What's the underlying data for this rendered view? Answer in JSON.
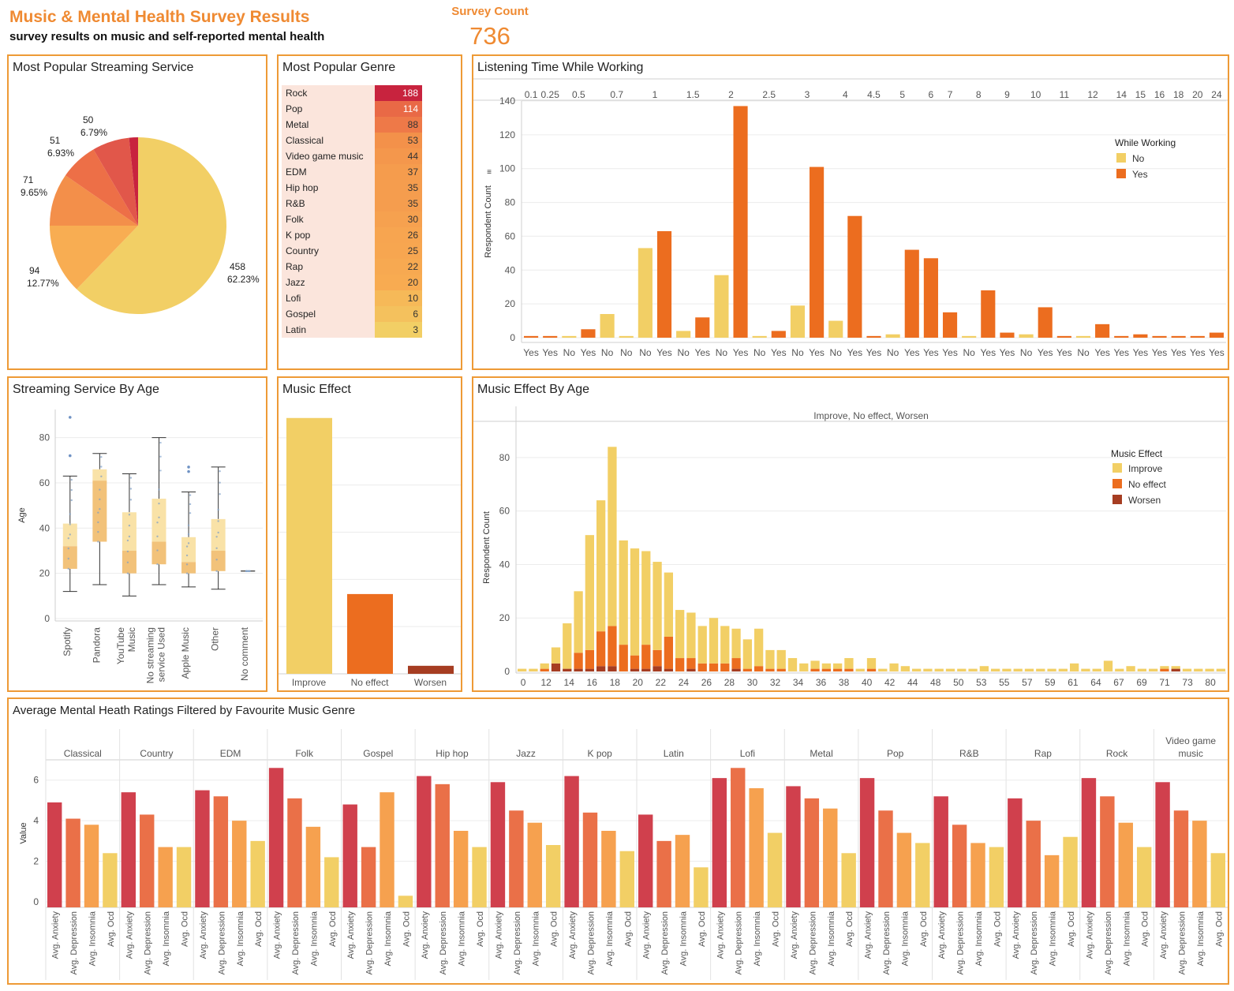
{
  "header": {
    "title": "Music & Mental Health Survey Results",
    "subtitle": "survey results on music and self-reported mental health",
    "survey_count_label": "Survey Count",
    "survey_count_value": "736"
  },
  "colors": {
    "yellow": "#f2cf65",
    "lightorange": "#f8ad52",
    "orange": "#f38f4a",
    "deeporange": "#ed6f47",
    "red": "#e1574a",
    "crimson": "#c8233e",
    "brightorange": "#ec6d1f",
    "brown": "#a63d22",
    "anxiety": "#d0404d",
    "depression": "#ea7048",
    "insomnia": "#f6a14f",
    "ocd": "#f2cf65",
    "panel_border": "#ee9a36",
    "accent": "#ef8a32"
  },
  "panels": {
    "streaming": {
      "title": "Most Popular Streaming Service"
    },
    "genre": {
      "title": "Most Popular Genre"
    },
    "listening": {
      "title": "Listening Time While Working"
    },
    "age_box": {
      "title": "Streaming Service By Age"
    },
    "effect": {
      "title": "Music Effect"
    },
    "effect_age": {
      "title": "Music Effect By Age"
    },
    "mental": {
      "title": "Average Mental Heath Ratings Filtered by Favourite Music Genre"
    }
  },
  "chart_data": [
    {
      "id": "streaming_pie",
      "type": "pie",
      "title": "Most Popular Streaming Service",
      "slices": [
        {
          "value": 458,
          "label": "458",
          "pct": "62.23%",
          "color": "yellow"
        },
        {
          "value": 94,
          "label": "94",
          "pct": "12.77%",
          "color": "lightorange"
        },
        {
          "value": 71,
          "label": "71",
          "pct": "9.65%",
          "color": "orange"
        },
        {
          "value": 51,
          "label": "51",
          "pct": "6.93%",
          "color": "deeporange"
        },
        {
          "value": 50,
          "label": "50",
          "pct": "6.79%",
          "color": "red"
        },
        {
          "value": 12,
          "label": "",
          "pct": "",
          "color": "crimson"
        }
      ]
    },
    {
      "id": "genre_table",
      "type": "table",
      "title": "Most Popular Genre",
      "rows": [
        {
          "genre": "Rock",
          "count": 188
        },
        {
          "genre": "Pop",
          "count": 114
        },
        {
          "genre": "Metal",
          "count": 88
        },
        {
          "genre": "Classical",
          "count": 53
        },
        {
          "genre": "Video game music",
          "count": 44
        },
        {
          "genre": "EDM",
          "count": 37
        },
        {
          "genre": "Hip hop",
          "count": 35
        },
        {
          "genre": "R&B",
          "count": 35
        },
        {
          "genre": "Folk",
          "count": 30
        },
        {
          "genre": "K pop",
          "count": 26
        },
        {
          "genre": "Country",
          "count": 25
        },
        {
          "genre": "Rap",
          "count": 22
        },
        {
          "genre": "Jazz",
          "count": 20
        },
        {
          "genre": "Lofi",
          "count": 10
        },
        {
          "genre": "Gospel",
          "count": 6
        },
        {
          "genre": "Latin",
          "count": 3
        }
      ]
    },
    {
      "id": "listening_time",
      "type": "bar",
      "title": "Listening Time While Working",
      "ylabel": "Respondent Count",
      "ylim": [
        0,
        140
      ],
      "yticks": [
        0,
        20,
        40,
        60,
        80,
        100,
        120,
        140
      ],
      "legend_title": "While Working",
      "legend": [
        {
          "name": "No",
          "color": "yellow"
        },
        {
          "name": "Yes",
          "color": "brightorange"
        }
      ],
      "groups": [
        {
          "hours": "0.1",
          "bars": [
            {
              "cat": "Yes",
              "value": 1
            }
          ]
        },
        {
          "hours": "0.25",
          "bars": [
            {
              "cat": "Yes",
              "value": 1
            }
          ]
        },
        {
          "hours": "0.5",
          "bars": [
            {
              "cat": "No",
              "value": 1
            },
            {
              "cat": "Yes",
              "value": 5
            }
          ]
        },
        {
          "hours": "0.7",
          "bars": [
            {
              "cat": "No",
              "value": 14
            },
            {
              "cat": "No",
              "value": 1
            }
          ]
        },
        {
          "hours": "1",
          "bars": [
            {
              "cat": "No",
              "value": 53
            },
            {
              "cat": "Yes",
              "value": 63
            }
          ]
        },
        {
          "hours": "1.5",
          "bars": [
            {
              "cat": "No",
              "value": 4
            },
            {
              "cat": "Yes",
              "value": 12
            }
          ]
        },
        {
          "hours": "2",
          "bars": [
            {
              "cat": "No",
              "value": 37
            },
            {
              "cat": "Yes",
              "value": 137
            }
          ]
        },
        {
          "hours": "2.5",
          "bars": [
            {
              "cat": "No",
              "value": 1
            },
            {
              "cat": "Yes",
              "value": 4
            }
          ]
        },
        {
          "hours": "3",
          "bars": [
            {
              "cat": "No",
              "value": 19
            },
            {
              "cat": "Yes",
              "value": 101
            }
          ]
        },
        {
          "hours": "4",
          "bars": [
            {
              "cat": "No",
              "value": 10
            },
            {
              "cat": "Yes",
              "value": 72
            }
          ]
        },
        {
          "hours": "4.5",
          "bars": [
            {
              "cat": "Yes",
              "value": 1
            }
          ]
        },
        {
          "hours": "5",
          "bars": [
            {
              "cat": "No",
              "value": 2
            },
            {
              "cat": "Yes",
              "value": 52
            }
          ]
        },
        {
          "hours": "6",
          "bars": [
            {
              "cat": "Yes",
              "value": 47
            }
          ]
        },
        {
          "hours": "7",
          "bars": [
            {
              "cat": "Yes",
              "value": 15
            }
          ]
        },
        {
          "hours": "8",
          "bars": [
            {
              "cat": "No",
              "value": 1
            },
            {
              "cat": "Yes",
              "value": 28
            }
          ]
        },
        {
          "hours": "9",
          "bars": [
            {
              "cat": "Yes",
              "value": 3
            }
          ]
        },
        {
          "hours": "10",
          "bars": [
            {
              "cat": "No",
              "value": 2
            },
            {
              "cat": "Yes",
              "value": 18
            }
          ]
        },
        {
          "hours": "11",
          "bars": [
            {
              "cat": "Yes",
              "value": 1
            }
          ]
        },
        {
          "hours": "12",
          "bars": [
            {
              "cat": "No",
              "value": 1
            },
            {
              "cat": "Yes",
              "value": 8
            }
          ]
        },
        {
          "hours": "14",
          "bars": [
            {
              "cat": "Yes",
              "value": 1
            }
          ]
        },
        {
          "hours": "15",
          "bars": [
            {
              "cat": "Yes",
              "value": 2
            }
          ]
        },
        {
          "hours": "16",
          "bars": [
            {
              "cat": "Yes",
              "value": 1
            }
          ]
        },
        {
          "hours": "18",
          "bars": [
            {
              "cat": "Yes",
              "value": 1
            }
          ]
        },
        {
          "hours": "20",
          "bars": [
            {
              "cat": "Yes",
              "value": 1
            }
          ]
        },
        {
          "hours": "24",
          "bars": [
            {
              "cat": "Yes",
              "value": 3
            }
          ]
        }
      ]
    },
    {
      "id": "streaming_by_age",
      "type": "box",
      "title": "Streaming Service By Age",
      "ylabel": "Age",
      "ylim": [
        0,
        90
      ],
      "yticks": [
        0,
        20,
        40,
        60,
        80
      ],
      "services": [
        {
          "name": "Spotify",
          "min": 12,
          "q1": 22,
          "median": 32,
          "q3": 42,
          "max": 63,
          "outliers": [
            72,
            89
          ]
        },
        {
          "name": "Pandora",
          "min": 15,
          "q1": 34,
          "median": 61,
          "q3": 66,
          "max": 73,
          "outliers": []
        },
        {
          "name": "YouTube Music",
          "min": 10,
          "q1": 20,
          "median": 30,
          "q3": 47,
          "max": 64,
          "outliers": []
        },
        {
          "name": "No streaming service Used",
          "min": 15,
          "q1": 24,
          "median": 34,
          "q3": 53,
          "max": 80,
          "outliers": []
        },
        {
          "name": "Apple Music",
          "min": 14,
          "q1": 20,
          "median": 25,
          "q3": 36,
          "max": 56,
          "outliers": [
            65,
            67
          ]
        },
        {
          "name": "Other",
          "min": 13,
          "q1": 21,
          "median": 30,
          "q3": 44,
          "max": 67,
          "outliers": []
        },
        {
          "name": "No comment",
          "min": 21,
          "q1": 21,
          "median": 21,
          "q3": 21,
          "max": 21,
          "outliers": []
        }
      ]
    },
    {
      "id": "music_effect",
      "type": "bar",
      "title": "Music Effect",
      "ylim": [
        0,
        560
      ],
      "categories": [
        "Improve",
        "No effect",
        "Worsen"
      ],
      "values": [
        542,
        169,
        17
      ],
      "colors": [
        "yellow",
        "brightorange",
        "brown"
      ]
    },
    {
      "id": "music_effect_by_age",
      "type": "bar",
      "stacked": true,
      "title": "Music Effect By Age",
      "header": "Improve, No effect, Worsen",
      "ylabel": "Respondent Count",
      "ylim": [
        0,
        90
      ],
      "yticks": [
        0,
        20,
        40,
        60,
        80
      ],
      "legend_title": "Music Effect",
      "legend": [
        {
          "name": "Improve",
          "color": "yellow"
        },
        {
          "name": "No effect",
          "color": "brightorange"
        },
        {
          "name": "Worsen",
          "color": "brown"
        }
      ],
      "xticks": [
        "0",
        "12",
        "14",
        "16",
        "18",
        "20",
        "22",
        "24",
        "26",
        "28",
        "30",
        "32",
        "34",
        "36",
        "38",
        "40",
        "42",
        "44",
        "48",
        "50",
        "53",
        "55",
        "57",
        "59",
        "61",
        "64",
        "67",
        "69",
        "71",
        "73",
        "80"
      ],
      "series": [
        {
          "name": "Improve",
          "values": [
            1,
            1,
            2,
            6,
            17,
            23,
            43,
            49,
            67,
            39,
            40,
            35,
            33,
            24,
            18,
            17,
            14,
            17,
            14,
            11,
            11,
            14,
            7,
            7,
            5,
            3,
            3,
            2,
            2,
            4,
            1,
            4,
            1,
            3,
            2,
            1,
            1,
            1,
            1,
            1,
            1,
            2,
            1,
            1,
            1,
            1,
            1,
            1,
            1,
            3,
            1,
            1,
            4,
            1,
            2,
            1,
            1,
            1,
            1,
            1,
            1,
            1,
            1
          ]
        },
        {
          "name": "No effect",
          "values": [
            0,
            0,
            1,
            0,
            0,
            6,
            7,
            13,
            15,
            10,
            5,
            9,
            6,
            12,
            5,
            4,
            3,
            3,
            3,
            4,
            1,
            2,
            1,
            1,
            0,
            0,
            1,
            1,
            1,
            1,
            0,
            1,
            0,
            0,
            0,
            0,
            0,
            0,
            0,
            0,
            0,
            0,
            0,
            0,
            0,
            0,
            0,
            0,
            0,
            0,
            0,
            0,
            0,
            0,
            0,
            0,
            0,
            1,
            0,
            0,
            0,
            0,
            0
          ]
        },
        {
          "name": "Worsen",
          "values": [
            0,
            0,
            0,
            3,
            1,
            1,
            1,
            2,
            2,
            0,
            1,
            1,
            2,
            1,
            0,
            1,
            0,
            0,
            0,
            1,
            0,
            0,
            0,
            0,
            0,
            0,
            0,
            0,
            0,
            0,
            0,
            0,
            0,
            0,
            0,
            0,
            0,
            0,
            0,
            0,
            0,
            0,
            0,
            0,
            0,
            0,
            0,
            0,
            0,
            0,
            0,
            0,
            0,
            0,
            0,
            0,
            0,
            0,
            1,
            0,
            0,
            0,
            0
          ]
        }
      ]
    },
    {
      "id": "mental_health_by_genre",
      "type": "bar",
      "title": "Average Mental Heath Ratings Filtered by Favourite Music Genre",
      "ylabel": "Value",
      "ylim": [
        0,
        7
      ],
      "yticks": [
        0,
        2,
        4,
        6
      ],
      "measures": [
        "Avg. Anxiety",
        "Avg. Depression",
        "Avg. Insomnia",
        "Avg. Ocd"
      ],
      "measure_colors": [
        "anxiety",
        "depression",
        "insomnia",
        "ocd"
      ],
      "genres": [
        {
          "name": "Classical",
          "values": [
            4.9,
            4.1,
            3.8,
            2.4
          ]
        },
        {
          "name": "Country",
          "values": [
            5.4,
            4.3,
            2.7,
            2.7
          ]
        },
        {
          "name": "EDM",
          "values": [
            5.5,
            5.2,
            4.0,
            3.0
          ]
        },
        {
          "name": "Folk",
          "values": [
            6.6,
            5.1,
            3.7,
            2.2
          ]
        },
        {
          "name": "Gospel",
          "values": [
            4.8,
            2.7,
            5.4,
            0.3
          ]
        },
        {
          "name": "Hip hop",
          "values": [
            6.2,
            5.8,
            3.5,
            2.7
          ]
        },
        {
          "name": "Jazz",
          "values": [
            5.9,
            4.5,
            3.9,
            2.8
          ]
        },
        {
          "name": "K pop",
          "values": [
            6.2,
            4.4,
            3.5,
            2.5
          ]
        },
        {
          "name": "Latin",
          "values": [
            4.3,
            3.0,
            3.3,
            1.7
          ]
        },
        {
          "name": "Lofi",
          "values": [
            6.1,
            6.6,
            5.6,
            3.4
          ]
        },
        {
          "name": "Metal",
          "values": [
            5.7,
            5.1,
            4.6,
            2.4
          ]
        },
        {
          "name": "Pop",
          "values": [
            6.1,
            4.5,
            3.4,
            2.9
          ]
        },
        {
          "name": "R&B",
          "values": [
            5.2,
            3.8,
            2.9,
            2.7
          ]
        },
        {
          "name": "Rap",
          "values": [
            5.1,
            4.0,
            2.3,
            3.2
          ]
        },
        {
          "name": "Rock",
          "values": [
            6.1,
            5.2,
            3.9,
            2.7
          ]
        },
        {
          "name": "Video game music",
          "values": [
            5.9,
            4.5,
            4.0,
            2.4
          ]
        }
      ]
    }
  ]
}
